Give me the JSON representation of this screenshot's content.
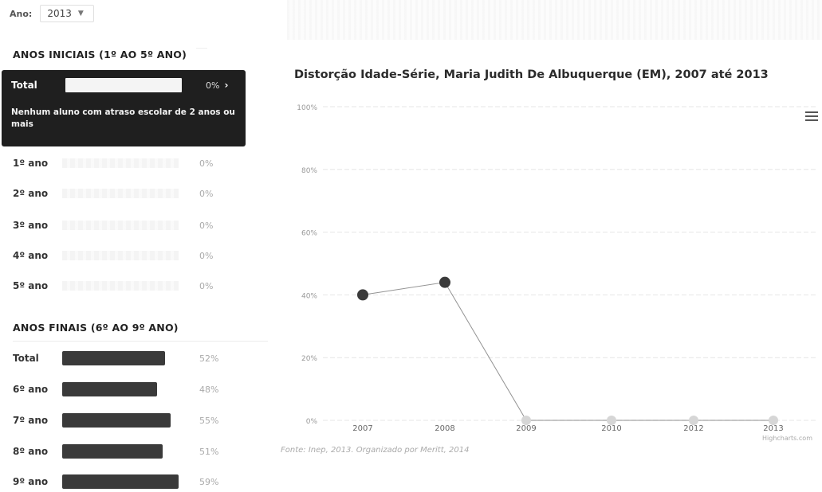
{
  "filter": {
    "label": "Ano:",
    "value": "2013"
  },
  "section_initial": {
    "title": "ANOS INICIAIS (1º AO 5º ANO)",
    "total": {
      "label": "Total",
      "value": "0%",
      "percent": 0
    },
    "tooltip_message": "Nenhum aluno com atraso escolar de 2 anos ou mais",
    "rows": [
      {
        "label": "1º ano",
        "value": "0%",
        "percent": 0
      },
      {
        "label": "2º ano",
        "value": "0%",
        "percent": 0
      },
      {
        "label": "3º ano",
        "value": "0%",
        "percent": 0
      },
      {
        "label": "4º ano",
        "value": "0%",
        "percent": 0
      },
      {
        "label": "5º ano",
        "value": "0%",
        "percent": 0
      }
    ]
  },
  "section_final": {
    "title": "ANOS FINAIS (6º AO 9º ANO)",
    "rows": [
      {
        "label": "Total",
        "value": "52%",
        "percent": 52
      },
      {
        "label": "6º ano",
        "value": "48%",
        "percent": 48
      },
      {
        "label": "7º ano",
        "value": "55%",
        "percent": 55
      },
      {
        "label": "8º ano",
        "value": "51%",
        "percent": 51
      },
      {
        "label": "9º ano",
        "value": "59%",
        "percent": 59
      }
    ]
  },
  "chart_data": {
    "type": "line",
    "title": "Distorção Idade-Série, Maria Judith De Albuquerque (EM), 2007 até 2013",
    "categories": [
      "2007",
      "2008",
      "2009",
      "2010",
      "2012",
      "2013"
    ],
    "series": [
      {
        "values": [
          40,
          44,
          0,
          0,
          0,
          0
        ]
      }
    ],
    "yticks": [
      "0%",
      "20%",
      "40%",
      "60%",
      "80%",
      "100%"
    ],
    "ylim": [
      0,
      100
    ],
    "grid": true,
    "source": "Fonte: Inep, 2013. Organizado por Meritt, 2014",
    "credits": "Highcharts.com",
    "colors": {
      "line": "#3a3a3a",
      "bar": "#3a3a3a",
      "tooltip": "#1f1f1f"
    }
  }
}
